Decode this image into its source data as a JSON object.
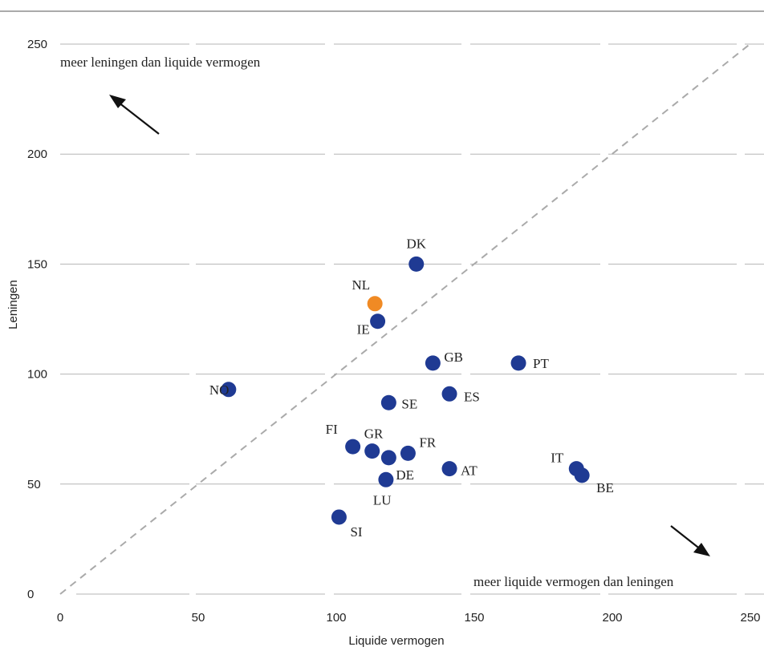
{
  "chart_data": {
    "type": "scatter",
    "xlabel": "Liquide vermogen",
    "ylabel": "Leningen",
    "xlim": [
      0,
      250
    ],
    "ylim": [
      0,
      250
    ],
    "x_ticks": [
      0,
      50,
      100,
      150,
      200,
      250
    ],
    "y_ticks": [
      0,
      50,
      100,
      150,
      200,
      250
    ],
    "grid": "horizontal",
    "reference_line": "y = x (dashed)",
    "annotations": {
      "upper_left": "meer leningen dan liquide vermogen",
      "lower_right": "meer liquide vermogen dan leningen"
    },
    "colors": {
      "default": "#1f3a93",
      "highlight": "#f08a24",
      "grid": "#b5b5b5",
      "diagonal": "#aaaaaa"
    },
    "points": [
      {
        "label": "DK",
        "x": 129,
        "y": 150,
        "highlight": false
      },
      {
        "label": "NL",
        "x": 114,
        "y": 132,
        "highlight": true
      },
      {
        "label": "IE",
        "x": 115,
        "y": 124,
        "highlight": false
      },
      {
        "label": "GB",
        "x": 135,
        "y": 105,
        "highlight": false
      },
      {
        "label": "PT",
        "x": 166,
        "y": 105,
        "highlight": false
      },
      {
        "label": "NO",
        "x": 61,
        "y": 93,
        "highlight": false
      },
      {
        "label": "ES",
        "x": 141,
        "y": 91,
        "highlight": false
      },
      {
        "label": "SE",
        "x": 119,
        "y": 87,
        "highlight": false
      },
      {
        "label": "FI",
        "x": 106,
        "y": 67,
        "highlight": false
      },
      {
        "label": "GR",
        "x": 113,
        "y": 65,
        "highlight": false
      },
      {
        "label": "FR",
        "x": 126,
        "y": 64,
        "highlight": false
      },
      {
        "label": "DE",
        "x": 119,
        "y": 62,
        "highlight": false
      },
      {
        "label": "AT",
        "x": 141,
        "y": 57,
        "highlight": false
      },
      {
        "label": "LU",
        "x": 118,
        "y": 52,
        "highlight": false
      },
      {
        "label": "IT",
        "x": 187,
        "y": 57,
        "highlight": false
      },
      {
        "label": "BE",
        "x": 189,
        "y": 54,
        "highlight": false
      },
      {
        "label": "SI",
        "x": 101,
        "y": 35,
        "highlight": false
      }
    ]
  }
}
